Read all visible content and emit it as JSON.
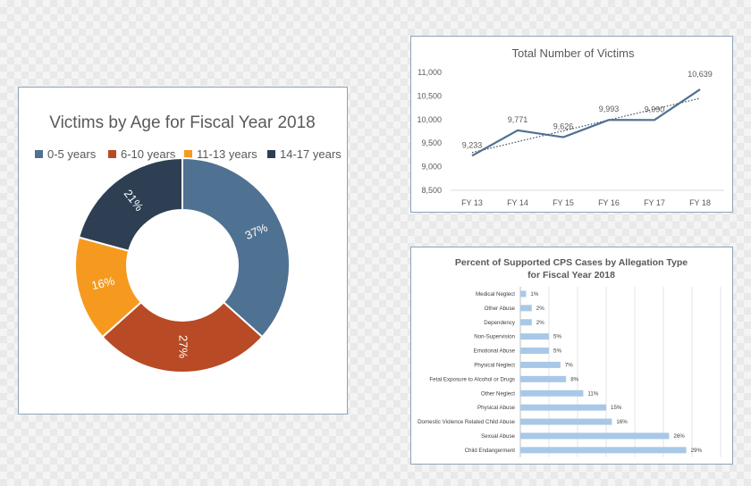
{
  "chart_data": [
    {
      "type": "pie",
      "title": "Victims by Age for Fiscal Year 2018",
      "categories": [
        "0-5 years",
        "6-10 years",
        "11-13 years",
        "14-17 years"
      ],
      "values": [
        37,
        27,
        16,
        21
      ],
      "data_labels": [
        "37%",
        "27%",
        "16%",
        "21%"
      ],
      "colors": [
        "#4f7192",
        "#b84a25",
        "#f59a1f",
        "#2e3f53"
      ],
      "legend": "top"
    },
    {
      "type": "line",
      "title": "Total Number of Victims",
      "categories": [
        "FY 13",
        "FY 14",
        "FY 15",
        "FY 16",
        "FY 17",
        "FY 18"
      ],
      "values": [
        9233,
        9771,
        9626,
        9993,
        9990,
        10639
      ],
      "data_labels": [
        "9,233",
        "9,771",
        "9,626",
        "9,993",
        "9,990",
        "10,639"
      ],
      "yticks": [
        "8,500",
        "9,000",
        "9,500",
        "10,000",
        "10,500",
        "11,000"
      ],
      "ylim": [
        8500,
        11000
      ],
      "trendline": "linear dotted",
      "color": "#4f7192"
    },
    {
      "type": "bar",
      "orientation": "horizontal",
      "title": "Percent of Supported  CPS Cases by Allegation Type",
      "subtitle": "for Fiscal Year 2018",
      "categories": [
        "Medical Neglect",
        "Other Abuse",
        "Dependency",
        "Non-Supervision",
        "Emotional Abuse",
        "Physical Neglect",
        "Fetal Exposure to Alcohol or Drugs",
        "Other Neglect",
        "Physical Abuse",
        "Domestic Violence Related Child Abuse",
        "Sexual Abuse",
        "Child Endangerment"
      ],
      "values": [
        1,
        2,
        2,
        5,
        5,
        7,
        8,
        11,
        15,
        16,
        26,
        29
      ],
      "data_labels": [
        "1%",
        "2%",
        "2%",
        "5%",
        "5%",
        "7%",
        "8%",
        "11%",
        "15%",
        "16%",
        "26%",
        "29%"
      ],
      "xlim": [
        0,
        35
      ],
      "color": "#a9c8e8"
    }
  ]
}
